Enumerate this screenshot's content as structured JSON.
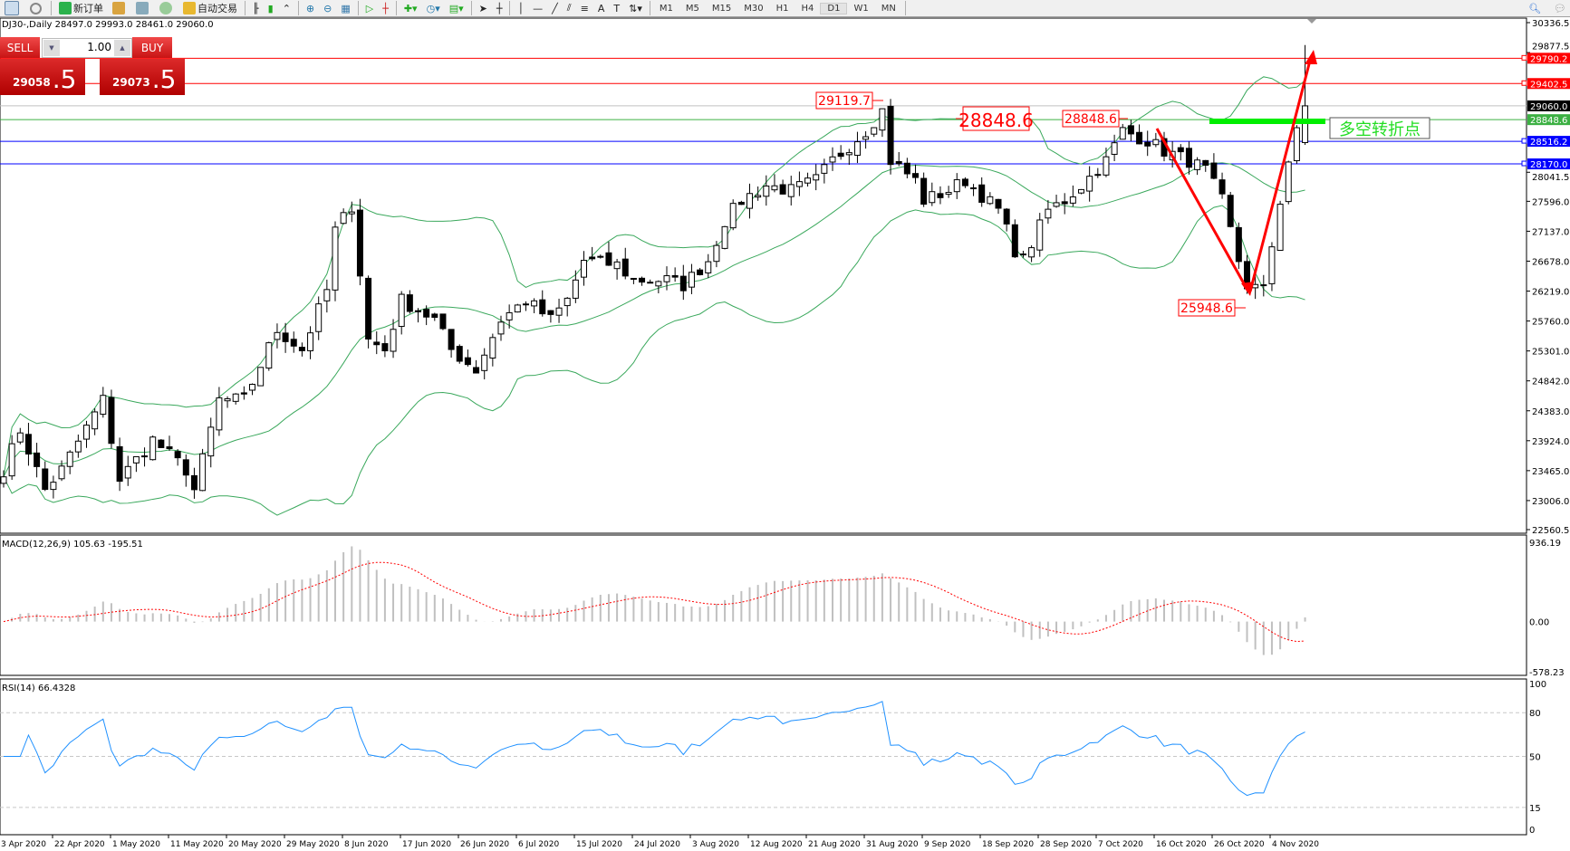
{
  "toolbar": {
    "new_order": "新订单",
    "auto_trading": "自动交易",
    "timeframes": [
      "M1",
      "M5",
      "M15",
      "M30",
      "H1",
      "H4",
      "D1",
      "W1",
      "MN"
    ],
    "active_timeframe": "D1"
  },
  "symbol_info": "DJ30-,Daily  28497.0 29993.0 28461.0 29060.0",
  "trade_panel": {
    "sell_label": "SELL",
    "buy_label": "BUY",
    "lot": "1.00",
    "sell_main": "29058",
    "sell_frac": ".5",
    "buy_main": "29073",
    "buy_frac": ".5"
  },
  "colors": {
    "bull": "#ffffff",
    "bear": "#000000",
    "bands": "#3aa85c",
    "macd_hist": "#c0c0c0",
    "macd_signal": "#ff0000",
    "rsi": "#1e90ff",
    "annotation": "#ff0000",
    "pivot_bar": "#00ee00"
  },
  "price_axis": [
    "30336.5",
    "29877.5",
    "28041.5",
    "27596.0",
    "27137.0",
    "26678.0",
    "26219.0",
    "25760.0",
    "25301.0",
    "24842.0",
    "24383.0",
    "23924.0",
    "23465.0",
    "23006.0",
    "22560.5"
  ],
  "price_range": [
    22560.5,
    30336.5
  ],
  "levels": [
    {
      "price": 29790.2,
      "label": "29790.2",
      "color": "#ff0000",
      "box": "#ff0000"
    },
    {
      "price": 29402.5,
      "label": "29402.5",
      "color": "#ff0000",
      "box": "#ff0000"
    },
    {
      "price": 29060.0,
      "label": "29060.0",
      "color": "#c0c0c0",
      "box": "#000000"
    },
    {
      "price": 28848.6,
      "label": "28848.6",
      "color": "#3cb043",
      "box": "#3cb043"
    },
    {
      "price": 28516.2,
      "label": "28516.2",
      "color": "#0000ff",
      "box": "#0000ff"
    },
    {
      "price": 28170.0,
      "label": "28170.0",
      "color": "#0000ff",
      "box": "#0000ff"
    }
  ],
  "annotations": {
    "high_label": "29119.7",
    "pivot_label_1": "28848.6",
    "pivot_label_2": "28848.6",
    "low_label": "25948.6",
    "pivot_text": "多空转折点"
  },
  "price_keyframes": [
    [
      0,
      23480
    ],
    [
      2,
      24090
    ],
    [
      5,
      23170
    ],
    [
      7,
      23480
    ],
    [
      12,
      24550
    ],
    [
      14,
      23330
    ],
    [
      18,
      23940
    ],
    [
      22,
      23480
    ],
    [
      23,
      23170
    ],
    [
      26,
      24550
    ],
    [
      29,
      24550
    ],
    [
      33,
      25620
    ],
    [
      36,
      25320
    ],
    [
      39,
      26230
    ],
    [
      40,
      27150
    ],
    [
      42,
      27530
    ],
    [
      44,
      25470
    ],
    [
      46,
      25320
    ],
    [
      48,
      26080
    ],
    [
      52,
      25780
    ],
    [
      54,
      25320
    ],
    [
      57,
      25010
    ],
    [
      60,
      25780
    ],
    [
      63,
      26080
    ],
    [
      66,
      25780
    ],
    [
      68,
      26080
    ],
    [
      70,
      26690
    ],
    [
      74,
      26620
    ],
    [
      76,
      26390
    ],
    [
      80,
      26390
    ],
    [
      82,
      26310
    ],
    [
      85,
      26690
    ],
    [
      87,
      27300
    ],
    [
      89,
      27610
    ],
    [
      92,
      27840
    ],
    [
      95,
      27760
    ],
    [
      98,
      27920
    ],
    [
      100,
      28220
    ],
    [
      104,
      28680
    ],
    [
      106,
      28990
    ],
    [
      107,
      28220
    ],
    [
      110,
      27920
    ],
    [
      111,
      27610
    ],
    [
      114,
      27760
    ],
    [
      116,
      27920
    ],
    [
      120,
      27460
    ],
    [
      122,
      26850
    ],
    [
      123,
      26700
    ],
    [
      126,
      27460
    ],
    [
      128,
      27610
    ],
    [
      130,
      27840
    ],
    [
      133,
      28220
    ],
    [
      135,
      28680
    ],
    [
      138,
      28530
    ],
    [
      140,
      28370
    ],
    [
      143,
      28220
    ],
    [
      145,
      28070
    ],
    [
      147,
      27610
    ],
    [
      149,
      26690
    ],
    [
      150,
      26310
    ],
    [
      152,
      26230
    ],
    [
      154,
      27610
    ],
    [
      155,
      28220
    ],
    [
      157,
      29060
    ]
  ],
  "macd": {
    "label": "MACD(12,26,9) 105.63 -195.51",
    "axis": [
      "936.19",
      "0.00",
      "-578.23"
    ],
    "range": [
      -578.23,
      936.19
    ]
  },
  "rsi": {
    "label": "RSI(14) 66.4328",
    "axis": [
      "100",
      "80",
      "50",
      "15",
      "0"
    ],
    "levels": [
      80,
      50,
      15
    ]
  },
  "dates": [
    "3 Apr 2020",
    "22 Apr 2020",
    "1 May 2020",
    "11 May 2020",
    "20 May 2020",
    "29 May 2020",
    "8 Jun 2020",
    "17 Jun 2020",
    "26 Jun 2020",
    "6 Jul 2020",
    "15 Jul 2020",
    "24 Jul 2020",
    "3 Aug 2020",
    "12 Aug 2020",
    "21 Aug 2020",
    "31 Aug 2020",
    "9 Sep 2020",
    "18 Sep 2020",
    "28 Sep 2020",
    "7 Oct 2020",
    "16 Oct 2020",
    "26 Oct 2020",
    "4 Nov 2020"
  ]
}
